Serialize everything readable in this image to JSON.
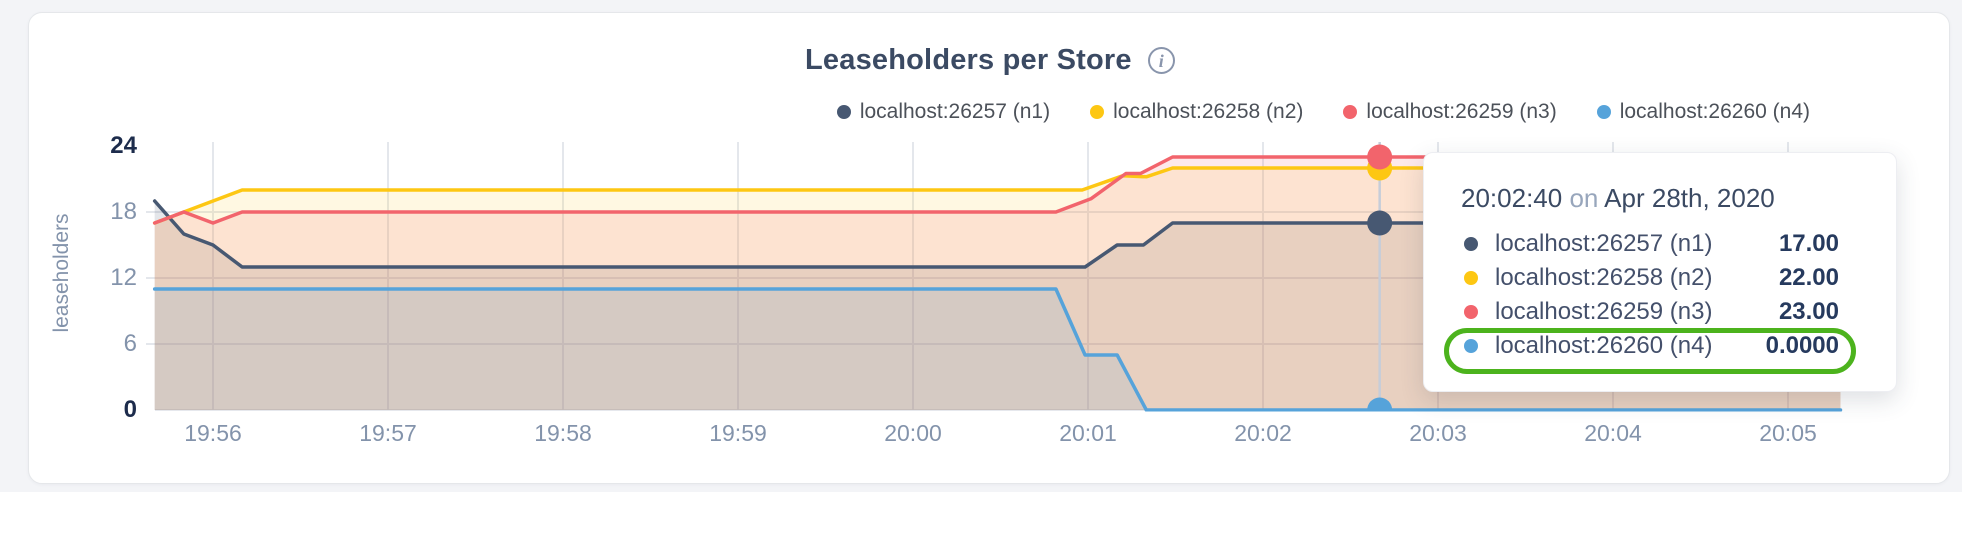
{
  "header": {
    "title": "Leaseholders per Store",
    "info_icon": "info-circle"
  },
  "colors": {
    "page_background": "#f3f4f7",
    "card_background": "#ffffff",
    "grid": "#e4e7ec",
    "baseline": "#dde1e7",
    "crosshair": "#c6cdd9",
    "annotation_green": "#4cb31d"
  },
  "legend": [
    {
      "label": "localhost:26257 (n1)",
      "color": "#475872"
    },
    {
      "label": "localhost:26258 (n2)",
      "color": "#fdc713"
    },
    {
      "label": "localhost:26259 (n3)",
      "color": "#f2646c"
    },
    {
      "label": "localhost:26260 (n4)",
      "color": "#56a3da"
    }
  ],
  "chart_data": {
    "type": "area",
    "title": "Leaseholders per Store",
    "ylabel": "leaseholders",
    "ylim": [
      0,
      24
    ],
    "grid": true,
    "legend_position": "top-right",
    "x_unit": "seconds since 19:55:40",
    "x_domain_seconds": [
      0,
      578
    ],
    "x_ticks": [
      "19:56",
      "19:57",
      "19:58",
      "19:59",
      "20:00",
      "20:01",
      "20:02",
      "20:03",
      "20:04",
      "20:05"
    ],
    "y_ticks": [
      {
        "label": "24",
        "value": 24,
        "emphasized": true
      },
      {
        "label": "18",
        "value": 18,
        "emphasized": false
      },
      {
        "label": "12",
        "value": 12,
        "emphasized": false
      },
      {
        "label": "6",
        "value": 6,
        "emphasized": false
      },
      {
        "label": "0",
        "value": 0,
        "emphasized": true
      }
    ],
    "series": [
      {
        "name": "localhost:26257 (n1)",
        "color": "#475872",
        "fill_opacity": 0.15,
        "points": [
          [
            0,
            19
          ],
          [
            10,
            16
          ],
          [
            20,
            15
          ],
          [
            30,
            13
          ],
          [
            319,
            13
          ],
          [
            330,
            15
          ],
          [
            339,
            15
          ],
          [
            349,
            17
          ],
          [
            578,
            17
          ]
        ]
      },
      {
        "name": "localhost:26258 (n2)",
        "color": "#fdc713",
        "fill_opacity": 0.12,
        "points": [
          [
            0,
            17
          ],
          [
            10,
            18
          ],
          [
            20,
            19
          ],
          [
            30,
            20
          ],
          [
            318,
            20
          ],
          [
            332,
            21.3
          ],
          [
            340,
            21.2
          ],
          [
            349,
            22
          ],
          [
            578,
            22
          ]
        ]
      },
      {
        "name": "localhost:26259 (n3)",
        "color": "#f2646c",
        "fill_opacity": 0.14,
        "points": [
          [
            0,
            17
          ],
          [
            10,
            18
          ],
          [
            20,
            17
          ],
          [
            30,
            18
          ],
          [
            309,
            18
          ],
          [
            321,
            19.2
          ],
          [
            333,
            21.5
          ],
          [
            338,
            21.5
          ],
          [
            349,
            23
          ],
          [
            578,
            23
          ]
        ]
      },
      {
        "name": "localhost:26260 (n4)",
        "color": "#56a3da",
        "fill_opacity": 0.12,
        "points": [
          [
            0,
            11
          ],
          [
            309,
            11
          ],
          [
            319,
            5
          ],
          [
            330,
            5
          ],
          [
            340,
            0
          ],
          [
            578,
            0
          ]
        ]
      }
    ],
    "hover": {
      "time": "20:02:40",
      "t_seconds": 420,
      "values": [
        17,
        22,
        23,
        0
      ]
    }
  },
  "tooltip": {
    "time": "20:02:40",
    "connector": "on",
    "date": "Apr 28th, 2020",
    "rows": [
      {
        "label": "localhost:26257 (n1)",
        "value": "17.00",
        "color": "#475872",
        "highlighted": false
      },
      {
        "label": "localhost:26258 (n2)",
        "value": "22.00",
        "color": "#fdc713",
        "highlighted": false
      },
      {
        "label": "localhost:26259 (n3)",
        "value": "23.00",
        "color": "#f2646c",
        "highlighted": false
      },
      {
        "label": "localhost:26260 (n4)",
        "value": "0.0000",
        "color": "#56a3da",
        "highlighted": true
      }
    ]
  },
  "annotation": {
    "shape": "oval",
    "color": "#4cb31d",
    "target": "tooltip row localhost:26260 (n4)"
  }
}
